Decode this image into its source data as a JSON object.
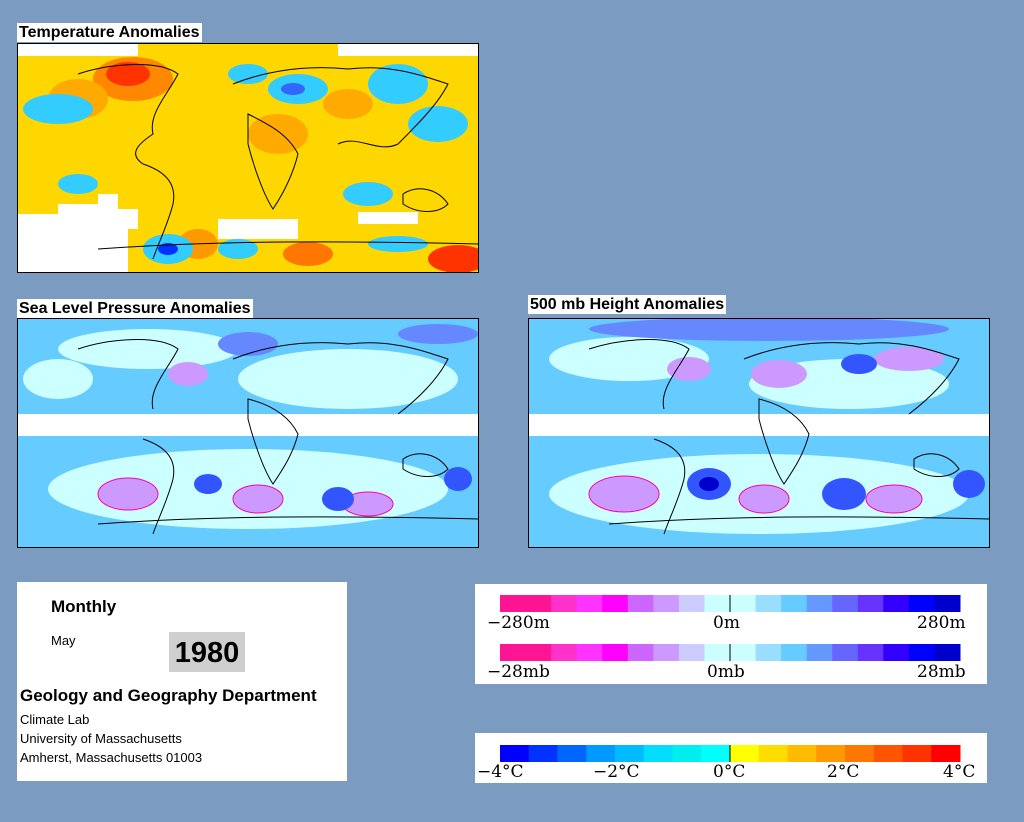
{
  "panels": {
    "temperature_title": "Temperature Anomalies",
    "slp_title": "Sea Level Pressure Anomalies",
    "height_title": "500 mb Height Anomalies"
  },
  "info": {
    "frequency": "Monthly",
    "month": "May",
    "year": "1980",
    "department": "Geology and Geography Department",
    "lab": "Climate Lab",
    "university": "University of Massachusetts",
    "address": "Amherst, Massachusetts 01003"
  },
  "legend_height_pressure": {
    "colors": [
      "#ff1493",
      "#ff1493",
      "#ff33cc",
      "#ff33ff",
      "#ff00ff",
      "#cc66ff",
      "#cc99ff",
      "#ccccff",
      "#ccffff",
      "#ccffff",
      "#99ddff",
      "#66ccff",
      "#6699ff",
      "#6666ff",
      "#6633ff",
      "#3300ff",
      "#0000ff",
      "#0000cc"
    ],
    "height_labels": [
      "−280m",
      "0m",
      "280m"
    ],
    "pressure_labels": [
      "−28mb",
      "0mb",
      "28mb"
    ]
  },
  "legend_temperature": {
    "colors": [
      "#0000ff",
      "#0033ff",
      "#0066ff",
      "#0099ff",
      "#00bbff",
      "#00ddff",
      "#00eeee",
      "#00ffff",
      "#ffff00",
      "#ffdd00",
      "#ffbb00",
      "#ff9900",
      "#ff7700",
      "#ff5500",
      "#ff3300",
      "#ff0000"
    ],
    "labels": [
      "−4°C",
      "−2°C",
      "0°C",
      "2°C",
      "4°C"
    ]
  }
}
